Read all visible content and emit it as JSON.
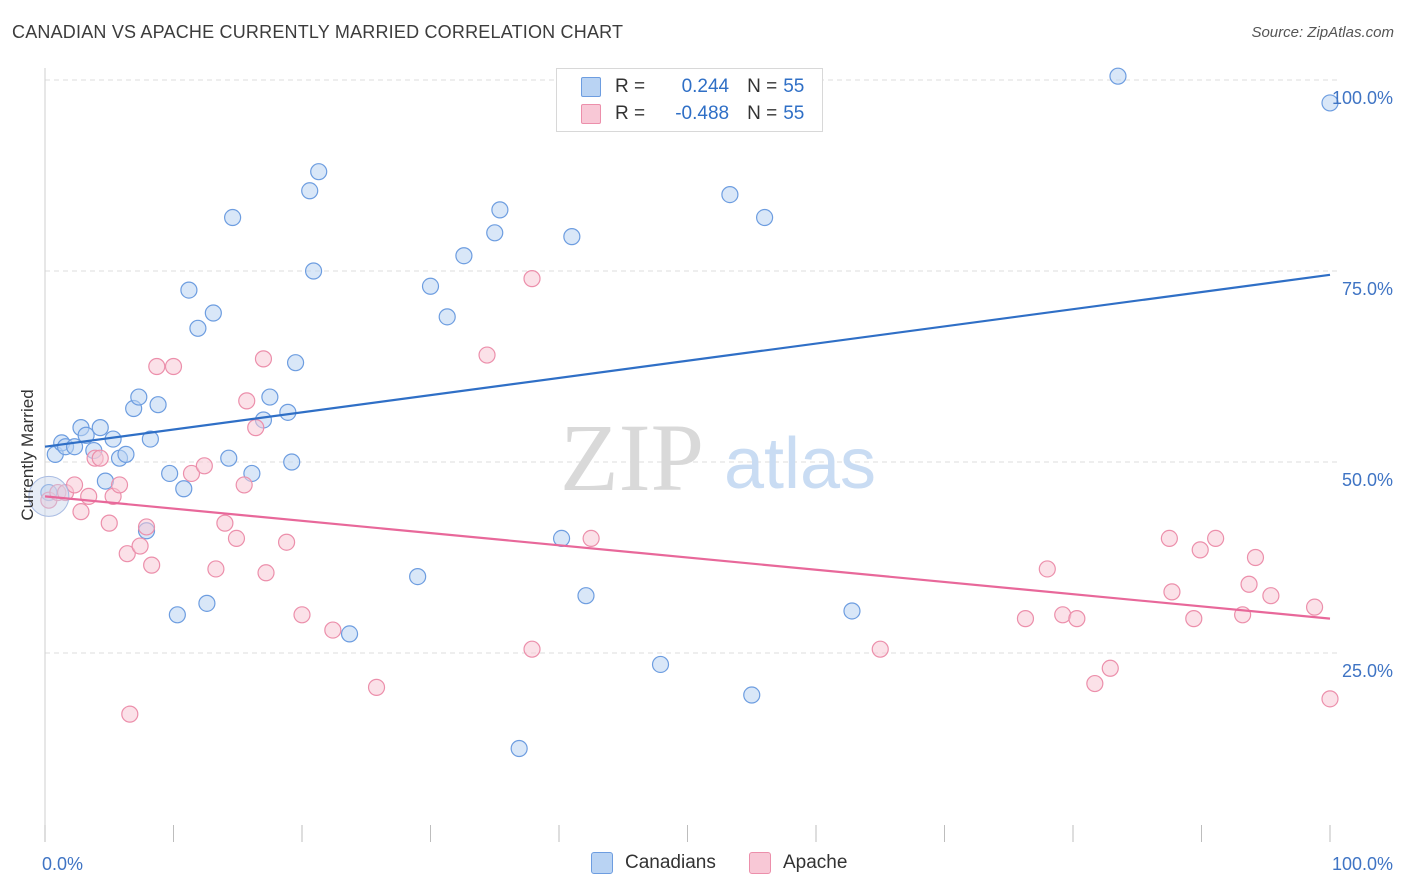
{
  "header": {
    "title": "CANADIAN VS APACHE CURRENTLY MARRIED CORRELATION CHART",
    "source": "Source: ZipAtlas.com"
  },
  "watermark": {
    "zip": "ZIP",
    "atlas": "atlas"
  },
  "legend": {
    "rows": [
      {
        "r_label": "R =",
        "r_value": "0.244",
        "n_label": "N =",
        "n_value": "55"
      },
      {
        "r_label": "R =",
        "r_value": "-0.488",
        "n_label": "N =",
        "n_value": "55"
      }
    ]
  },
  "colors": {
    "canadians_fill": "#b9d3f3",
    "canadians_stroke": "#6d9de0",
    "canadians_line": "#2f6fc6",
    "apache_fill": "#f8c8d6",
    "apache_stroke": "#ec8fab",
    "apache_line": "#e8689a",
    "grid": "#dedede",
    "tick_label": "#3f74c4"
  },
  "chart_data": {
    "type": "scatter",
    "title": "CANADIAN VS APACHE CURRENTLY MARRIED CORRELATION CHART",
    "xlabel": "",
    "ylabel": "Currently Married",
    "xlim": [
      0,
      100
    ],
    "ylim": [
      2,
      103
    ],
    "x_tick_labels": [
      "0.0%",
      "100.0%"
    ],
    "y_ticks": [
      25,
      50,
      75,
      100
    ],
    "y_tick_labels": [
      "25.0%",
      "50.0%",
      "75.0%",
      "100.0%"
    ],
    "grid": true,
    "legend_position": "bottom",
    "series": [
      {
        "name": "Canadians",
        "r": 0.244,
        "n": 55,
        "trend": {
          "x": [
            0,
            100
          ],
          "y": [
            52.0,
            74.5
          ]
        },
        "points": [
          [
            0.3,
            46.0
          ],
          [
            0.8,
            51.0
          ],
          [
            1.3,
            52.5
          ],
          [
            1.6,
            52.0
          ],
          [
            2.3,
            52.0
          ],
          [
            2.8,
            54.5
          ],
          [
            3.2,
            53.5
          ],
          [
            3.8,
            51.5
          ],
          [
            4.3,
            54.5
          ],
          [
            4.7,
            47.5
          ],
          [
            5.3,
            53.0
          ],
          [
            5.8,
            50.5
          ],
          [
            6.3,
            51.0
          ],
          [
            6.9,
            57.0
          ],
          [
            7.3,
            58.5
          ],
          [
            7.9,
            41.0
          ],
          [
            8.2,
            53.0
          ],
          [
            8.8,
            57.5
          ],
          [
            9.7,
            48.5
          ],
          [
            10.3,
            30.0
          ],
          [
            10.8,
            46.5
          ],
          [
            11.2,
            72.5
          ],
          [
            11.9,
            67.5
          ],
          [
            12.6,
            31.5
          ],
          [
            13.1,
            69.5
          ],
          [
            14.3,
            50.5
          ],
          [
            14.6,
            82.0
          ],
          [
            16.1,
            48.5
          ],
          [
            17.0,
            55.5
          ],
          [
            17.5,
            58.5
          ],
          [
            18.9,
            56.5
          ],
          [
            19.2,
            50.0
          ],
          [
            19.5,
            63.0
          ],
          [
            20.6,
            85.5
          ],
          [
            20.9,
            75.0
          ],
          [
            21.3,
            88.0
          ],
          [
            23.7,
            27.5
          ],
          [
            29.0,
            35.0
          ],
          [
            30.0,
            73.0
          ],
          [
            31.3,
            69.0
          ],
          [
            32.6,
            77.0
          ],
          [
            35.0,
            80.0
          ],
          [
            35.4,
            83.0
          ],
          [
            36.9,
            12.5
          ],
          [
            40.2,
            40.0
          ],
          [
            41.0,
            79.5
          ],
          [
            42.1,
            32.5
          ],
          [
            47.9,
            23.5
          ],
          [
            53.3,
            85.0
          ],
          [
            55.0,
            19.5
          ],
          [
            56.0,
            82.0
          ],
          [
            62.8,
            30.5
          ],
          [
            83.5,
            100.5
          ],
          [
            100.0,
            97.0
          ]
        ]
      },
      {
        "name": "Apache",
        "r": -0.488,
        "n": 55,
        "trend": {
          "x": [
            0,
            100
          ],
          "y": [
            45.5,
            29.5
          ]
        },
        "points": [
          [
            0.3,
            45.0
          ],
          [
            1.0,
            46.0
          ],
          [
            1.6,
            46.0
          ],
          [
            2.3,
            47.0
          ],
          [
            2.8,
            43.5
          ],
          [
            3.4,
            45.5
          ],
          [
            3.9,
            50.5
          ],
          [
            4.3,
            50.5
          ],
          [
            5.0,
            42.0
          ],
          [
            5.3,
            45.5
          ],
          [
            5.8,
            47.0
          ],
          [
            6.4,
            38.0
          ],
          [
            7.4,
            39.0
          ],
          [
            7.9,
            41.5
          ],
          [
            8.3,
            36.5
          ],
          [
            8.7,
            62.5
          ],
          [
            6.6,
            17.0
          ],
          [
            10.0,
            62.5
          ],
          [
            11.4,
            48.5
          ],
          [
            12.4,
            49.5
          ],
          [
            13.3,
            36.0
          ],
          [
            14.0,
            42.0
          ],
          [
            14.9,
            40.0
          ],
          [
            15.5,
            47.0
          ],
          [
            15.7,
            58.0
          ],
          [
            16.4,
            54.5
          ],
          [
            17.0,
            63.5
          ],
          [
            17.2,
            35.5
          ],
          [
            18.8,
            39.5
          ],
          [
            20.0,
            30.0
          ],
          [
            22.4,
            28.0
          ],
          [
            25.8,
            20.5
          ],
          [
            34.4,
            64.0
          ],
          [
            37.9,
            74.0
          ],
          [
            37.9,
            25.5
          ],
          [
            42.5,
            40.0
          ],
          [
            65.0,
            25.5
          ],
          [
            76.3,
            29.5
          ],
          [
            78.0,
            36.0
          ],
          [
            79.2,
            30.0
          ],
          [
            80.3,
            29.5
          ],
          [
            81.7,
            21.0
          ],
          [
            82.9,
            23.0
          ],
          [
            87.5,
            40.0
          ],
          [
            87.7,
            33.0
          ],
          [
            89.4,
            29.5
          ],
          [
            89.9,
            38.5
          ],
          [
            91.1,
            40.0
          ],
          [
            93.2,
            30.0
          ],
          [
            93.7,
            34.0
          ],
          [
            94.2,
            37.5
          ],
          [
            95.4,
            32.5
          ],
          [
            98.8,
            31.0
          ],
          [
            100.0,
            19.0
          ]
        ]
      }
    ]
  },
  "bottom_legend": {
    "items": [
      "Canadians",
      "Apache"
    ]
  }
}
